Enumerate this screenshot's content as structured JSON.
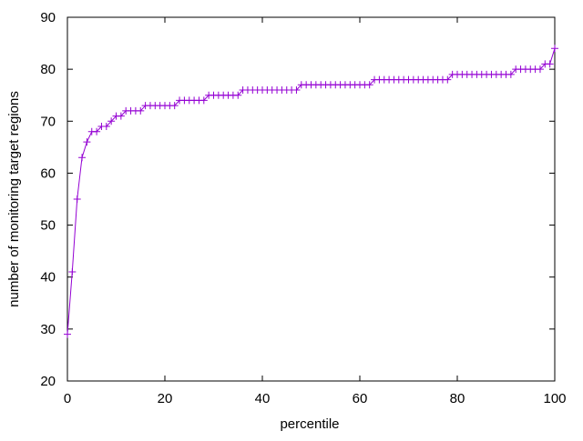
{
  "chart_data": {
    "type": "line",
    "title": "",
    "xlabel": "percentile",
    "ylabel": "number of monitoring target regions",
    "xlim": [
      0,
      100
    ],
    "ylim": [
      20,
      90
    ],
    "xticks": [
      "0",
      "20",
      "40",
      "60",
      "80",
      "100"
    ],
    "yticks": [
      "20",
      "30",
      "40",
      "50",
      "60",
      "70",
      "80",
      "90"
    ],
    "grid": false,
    "marker": "plus",
    "color": "#9400d3",
    "series": [
      {
        "x": [
          0,
          1,
          2,
          3,
          4,
          5,
          6,
          7,
          8,
          9,
          10,
          11,
          12,
          13,
          14,
          15,
          16,
          17,
          18,
          19,
          20,
          21,
          22,
          23,
          24,
          25,
          26,
          27,
          28,
          29,
          30,
          31,
          32,
          33,
          34,
          35,
          36,
          37,
          38,
          39,
          40,
          41,
          42,
          43,
          44,
          45,
          46,
          47,
          48,
          49,
          50,
          51,
          52,
          53,
          54,
          55,
          56,
          57,
          58,
          59,
          60,
          61,
          62,
          63,
          64,
          65,
          66,
          67,
          68,
          69,
          70,
          71,
          72,
          73,
          74,
          75,
          76,
          77,
          78,
          79,
          80,
          81,
          82,
          83,
          84,
          85,
          86,
          87,
          88,
          89,
          90,
          91,
          92,
          93,
          94,
          95,
          96,
          97,
          98,
          99,
          100
        ],
        "values": [
          29,
          41,
          55,
          63,
          66,
          68,
          68,
          69,
          69,
          70,
          71,
          71,
          72,
          72,
          72,
          72,
          73,
          73,
          73,
          73,
          73,
          73,
          73,
          74,
          74,
          74,
          74,
          74,
          74,
          75,
          75,
          75,
          75,
          75,
          75,
          75,
          76,
          76,
          76,
          76,
          76,
          76,
          76,
          76,
          76,
          76,
          76,
          76,
          77,
          77,
          77,
          77,
          77,
          77,
          77,
          77,
          77,
          77,
          77,
          77,
          77,
          77,
          77,
          78,
          78,
          78,
          78,
          78,
          78,
          78,
          78,
          78,
          78,
          78,
          78,
          78,
          78,
          78,
          78,
          79,
          79,
          79,
          79,
          79,
          79,
          79,
          79,
          79,
          79,
          79,
          79,
          79,
          80,
          80,
          80,
          80,
          80,
          80,
          81,
          81,
          84
        ]
      }
    ]
  }
}
